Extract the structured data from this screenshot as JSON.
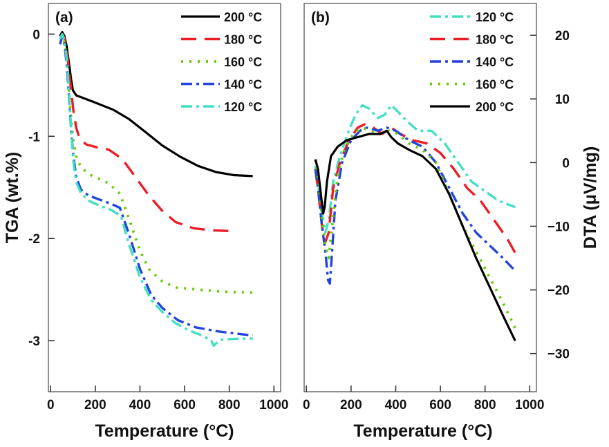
{
  "chart_data": [
    {
      "panel_label": "(a)",
      "type": "line",
      "xlabel": "Temperature (°C)",
      "ylabel": "TGA (wt.%)",
      "xlim": [
        -10,
        1030
      ],
      "ylim": [
        -3.5,
        0.3
      ],
      "xticks": [
        0,
        200,
        400,
        600,
        800,
        1000
      ],
      "yticks": [
        0,
        -1,
        -2,
        -3
      ],
      "ytick_labels": [
        "0",
        "-1",
        "-2",
        "-3"
      ],
      "legend_position": "top-right",
      "series": [
        {
          "name": "200 °C",
          "color": "#000000",
          "dash": "solid",
          "points": [
            [
              42,
              -0.02
            ],
            [
              52,
              0.02
            ],
            [
              62,
              -0.02
            ],
            [
              72,
              -0.12
            ],
            [
              82,
              -0.28
            ],
            [
              92,
              -0.45
            ],
            [
              100,
              -0.55
            ],
            [
              115,
              -0.6
            ],
            [
              140,
              -0.62
            ],
            [
              200,
              -0.67
            ],
            [
              280,
              -0.74
            ],
            [
              350,
              -0.83
            ],
            [
              420,
              -0.95
            ],
            [
              500,
              -1.09
            ],
            [
              580,
              -1.2
            ],
            [
              660,
              -1.29
            ],
            [
              740,
              -1.35
            ],
            [
              820,
              -1.38
            ],
            [
              905,
              -1.39
            ]
          ]
        },
        {
          "name": "180 °C",
          "color": "#ee1c24",
          "dash": "long-dash",
          "points": [
            [
              42,
              -0.05
            ],
            [
              52,
              0
            ],
            [
              62,
              -0.04
            ],
            [
              72,
              -0.15
            ],
            [
              82,
              -0.35
            ],
            [
              92,
              -0.55
            ],
            [
              102,
              -0.75
            ],
            [
              115,
              -0.92
            ],
            [
              130,
              -1.02
            ],
            [
              160,
              -1.08
            ],
            [
              210,
              -1.11
            ],
            [
              260,
              -1.13
            ],
            [
              320,
              -1.22
            ],
            [
              380,
              -1.4
            ],
            [
              440,
              -1.58
            ],
            [
              500,
              -1.73
            ],
            [
              560,
              -1.84
            ],
            [
              640,
              -1.9
            ],
            [
              720,
              -1.92
            ],
            [
              830,
              -1.93
            ]
          ]
        },
        {
          "name": "160 °C",
          "color": "#66cc00",
          "dash": "dot",
          "points": [
            [
              42,
              -0.05
            ],
            [
              52,
              -0.02
            ],
            [
              62,
              -0.08
            ],
            [
              72,
              -0.25
            ],
            [
              82,
              -0.55
            ],
            [
              92,
              -0.85
            ],
            [
              102,
              -1.05
            ],
            [
              115,
              -1.2
            ],
            [
              135,
              -1.3
            ],
            [
              170,
              -1.37
            ],
            [
              220,
              -1.42
            ],
            [
              260,
              -1.46
            ],
            [
              310,
              -1.56
            ],
            [
              350,
              -1.8
            ],
            [
              400,
              -2.12
            ],
            [
              440,
              -2.3
            ],
            [
              500,
              -2.42
            ],
            [
              560,
              -2.48
            ],
            [
              660,
              -2.5
            ],
            [
              760,
              -2.52
            ],
            [
              905,
              -2.53
            ]
          ]
        },
        {
          "name": "140 °C",
          "color": "#2244dd",
          "dash": "dash-dot",
          "points": [
            [
              42,
              -0.1
            ],
            [
              52,
              -0.02
            ],
            [
              62,
              -0.1
            ],
            [
              72,
              -0.3
            ],
            [
              82,
              -0.6
            ],
            [
              92,
              -0.95
            ],
            [
              102,
              -1.2
            ],
            [
              115,
              -1.4
            ],
            [
              135,
              -1.52
            ],
            [
              170,
              -1.58
            ],
            [
              220,
              -1.62
            ],
            [
              270,
              -1.66
            ],
            [
              310,
              -1.7
            ],
            [
              350,
              -1.95
            ],
            [
              400,
              -2.3
            ],
            [
              450,
              -2.55
            ],
            [
              500,
              -2.68
            ],
            [
              570,
              -2.8
            ],
            [
              650,
              -2.87
            ],
            [
              750,
              -2.91
            ],
            [
              905,
              -2.95
            ]
          ]
        },
        {
          "name": "120 °C",
          "color": "#40e0c0",
          "dash": "dash-dot",
          "points": [
            [
              42,
              -0.05
            ],
            [
              52,
              0
            ],
            [
              62,
              -0.06
            ],
            [
              72,
              -0.25
            ],
            [
              82,
              -0.55
            ],
            [
              92,
              -0.95
            ],
            [
              102,
              -1.25
            ],
            [
              115,
              -1.45
            ],
            [
              135,
              -1.55
            ],
            [
              170,
              -1.63
            ],
            [
              220,
              -1.68
            ],
            [
              270,
              -1.72
            ],
            [
              315,
              -1.78
            ],
            [
              350,
              -2.05
            ],
            [
              400,
              -2.38
            ],
            [
              450,
              -2.6
            ],
            [
              500,
              -2.72
            ],
            [
              560,
              -2.83
            ],
            [
              620,
              -2.9
            ],
            [
              680,
              -2.95
            ],
            [
              720,
              -3.0
            ],
            [
              730,
              -3.05
            ],
            [
              760,
              -2.99
            ],
            [
              850,
              -2.98
            ],
            [
              905,
              -2.98
            ]
          ]
        }
      ]
    },
    {
      "panel_label": "(b)",
      "type": "line",
      "xlabel": "Temperature (°C)",
      "ylabel": "DTA (μV/mg)",
      "y_axis_side": "right",
      "xlim": [
        -10,
        1030
      ],
      "ylim": [
        -36,
        25
      ],
      "xticks": [
        0,
        200,
        400,
        600,
        800,
        1000
      ],
      "yticks": [
        20,
        10,
        0,
        -10,
        -20,
        -30
      ],
      "ytick_labels": [
        "20",
        "10",
        "0",
        "−10",
        "−20",
        "−30"
      ],
      "legend_position": "top-left",
      "series": [
        {
          "name": "120 °C",
          "color": "#40e0c0",
          "dash": "dash-dot",
          "points": [
            [
              40,
              -0.5
            ],
            [
              55,
              -4
            ],
            [
              70,
              -8
            ],
            [
              85,
              -11
            ],
            [
              100,
              -9
            ],
            [
              120,
              -3
            ],
            [
              150,
              1
            ],
            [
              190,
              5
            ],
            [
              220,
              7.5
            ],
            [
              250,
              9
            ],
            [
              280,
              8.5
            ],
            [
              320,
              7
            ],
            [
              350,
              7.5
            ],
            [
              380,
              9
            ],
            [
              410,
              8
            ],
            [
              450,
              6.5
            ],
            [
              500,
              5
            ],
            [
              560,
              5
            ],
            [
              620,
              3
            ],
            [
              680,
              0
            ],
            [
              740,
              -3
            ],
            [
              800,
              -4.5
            ],
            [
              860,
              -6
            ],
            [
              935,
              -7
            ]
          ]
        },
        {
          "name": "180 °C",
          "color": "#ee1c24",
          "dash": "long-dash",
          "points": [
            [
              40,
              -1
            ],
            [
              55,
              -5
            ],
            [
              70,
              -10
            ],
            [
              85,
              -12.5
            ],
            [
              100,
              -11
            ],
            [
              120,
              -4
            ],
            [
              150,
              0
            ],
            [
              190,
              3.5
            ],
            [
              230,
              5.5
            ],
            [
              260,
              6
            ],
            [
              300,
              5.5
            ],
            [
              340,
              4.5
            ],
            [
              380,
              5.5
            ],
            [
              420,
              4.5
            ],
            [
              480,
              3.5
            ],
            [
              540,
              3
            ],
            [
              600,
              1.5
            ],
            [
              660,
              -1
            ],
            [
              720,
              -4
            ],
            [
              780,
              -6
            ],
            [
              840,
              -9
            ],
            [
              900,
              -12
            ],
            [
              940,
              -14.5
            ]
          ]
        },
        {
          "name": "140 °C",
          "color": "#2244dd",
          "dash": "dash-dot",
          "points": [
            [
              40,
              -1
            ],
            [
              55,
              -5
            ],
            [
              70,
              -10
            ],
            [
              85,
              -14
            ],
            [
              97,
              -18.5
            ],
            [
              105,
              -19
            ],
            [
              115,
              -14
            ],
            [
              130,
              -6
            ],
            [
              160,
              0
            ],
            [
              200,
              3.5
            ],
            [
              240,
              5
            ],
            [
              270,
              5.5
            ],
            [
              320,
              5
            ],
            [
              360,
              5.5
            ],
            [
              400,
              5
            ],
            [
              460,
              3.5
            ],
            [
              520,
              2.5
            ],
            [
              580,
              0
            ],
            [
              640,
              -4
            ],
            [
              700,
              -8
            ],
            [
              760,
              -11
            ],
            [
              820,
              -13
            ],
            [
              880,
              -15
            ],
            [
              935,
              -17
            ]
          ]
        },
        {
          "name": "160 °C",
          "color": "#66cc00",
          "dash": "dot",
          "points": [
            [
              40,
              0.5
            ],
            [
              55,
              -3
            ],
            [
              70,
              -9
            ],
            [
              85,
              -13
            ],
            [
              100,
              -15
            ],
            [
              115,
              -10
            ],
            [
              140,
              -2
            ],
            [
              170,
              2
            ],
            [
              210,
              4.5
            ],
            [
              250,
              5.5
            ],
            [
              290,
              5
            ],
            [
              330,
              4.5
            ],
            [
              370,
              5
            ],
            [
              410,
              4.5
            ],
            [
              460,
              3
            ],
            [
              520,
              2
            ],
            [
              580,
              0
            ],
            [
              640,
              -5
            ],
            [
              700,
              -10
            ],
            [
              760,
              -14
            ],
            [
              820,
              -18
            ],
            [
              880,
              -22
            ],
            [
              935,
              -26
            ]
          ]
        },
        {
          "name": "200 °C",
          "color": "#000000",
          "dash": "solid",
          "points": [
            [
              40,
              0.5
            ],
            [
              52,
              -1
            ],
            [
              65,
              -5
            ],
            [
              75,
              -8
            ],
            [
              82,
              -7
            ],
            [
              92,
              -3
            ],
            [
              110,
              1
            ],
            [
              140,
              2.5
            ],
            [
              180,
              3.5
            ],
            [
              230,
              4
            ],
            [
              280,
              4.5
            ],
            [
              330,
              4.5
            ],
            [
              360,
              5
            ],
            [
              380,
              4
            ],
            [
              410,
              3
            ],
            [
              460,
              2
            ],
            [
              520,
              1
            ],
            [
              580,
              -1
            ],
            [
              640,
              -5
            ],
            [
              700,
              -10
            ],
            [
              760,
              -15
            ],
            [
              820,
              -19.5
            ],
            [
              880,
              -24
            ],
            [
              935,
              -28
            ]
          ]
        }
      ]
    }
  ]
}
